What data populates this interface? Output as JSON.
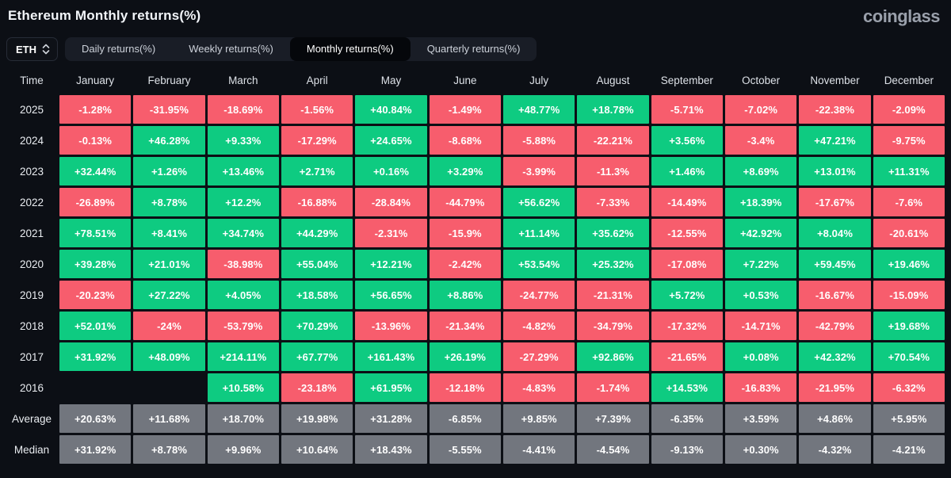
{
  "header": {
    "title": "Ethereum Monthly returns(%)",
    "logo": "coinglass"
  },
  "controls": {
    "symbol": "ETH",
    "tabs": [
      {
        "label": "Daily returns(%)",
        "active": false
      },
      {
        "label": "Weekly returns(%)",
        "active": false
      },
      {
        "label": "Monthly returns(%)",
        "active": true
      },
      {
        "label": "Quarterly returns(%)",
        "active": false
      }
    ]
  },
  "chart_data": {
    "type": "heatmap",
    "title": "Ethereum Monthly returns(%)",
    "columns": [
      "Time",
      "January",
      "February",
      "March",
      "April",
      "May",
      "June",
      "July",
      "August",
      "September",
      "October",
      "November",
      "December"
    ],
    "rows": [
      {
        "label": "2025",
        "summary": false,
        "values": [
          "-1.28%",
          "-31.95%",
          "-18.69%",
          "-1.56%",
          "+40.84%",
          "-1.49%",
          "+48.77%",
          "+18.78%",
          "-5.71%",
          "-7.02%",
          "-22.38%",
          "-2.09%"
        ]
      },
      {
        "label": "2024",
        "summary": false,
        "values": [
          "-0.13%",
          "+46.28%",
          "+9.33%",
          "-17.29%",
          "+24.65%",
          "-8.68%",
          "-5.88%",
          "-22.21%",
          "+3.56%",
          "-3.4%",
          "+47.21%",
          "-9.75%"
        ]
      },
      {
        "label": "2023",
        "summary": false,
        "values": [
          "+32.44%",
          "+1.26%",
          "+13.46%",
          "+2.71%",
          "+0.16%",
          "+3.29%",
          "-3.99%",
          "-11.3%",
          "+1.46%",
          "+8.69%",
          "+13.01%",
          "+11.31%"
        ]
      },
      {
        "label": "2022",
        "summary": false,
        "values": [
          "-26.89%",
          "+8.78%",
          "+12.2%",
          "-16.88%",
          "-28.84%",
          "-44.79%",
          "+56.62%",
          "-7.33%",
          "-14.49%",
          "+18.39%",
          "-17.67%",
          "-7.6%"
        ]
      },
      {
        "label": "2021",
        "summary": false,
        "values": [
          "+78.51%",
          "+8.41%",
          "+34.74%",
          "+44.29%",
          "-2.31%",
          "-15.9%",
          "+11.14%",
          "+35.62%",
          "-12.55%",
          "+42.92%",
          "+8.04%",
          "-20.61%"
        ]
      },
      {
        "label": "2020",
        "summary": false,
        "values": [
          "+39.28%",
          "+21.01%",
          "-38.98%",
          "+55.04%",
          "+12.21%",
          "-2.42%",
          "+53.54%",
          "+25.32%",
          "-17.08%",
          "+7.22%",
          "+59.45%",
          "+19.46%"
        ]
      },
      {
        "label": "2019",
        "summary": false,
        "values": [
          "-20.23%",
          "+27.22%",
          "+4.05%",
          "+18.58%",
          "+56.65%",
          "+8.86%",
          "-24.77%",
          "-21.31%",
          "+5.72%",
          "+0.53%",
          "-16.67%",
          "-15.09%"
        ]
      },
      {
        "label": "2018",
        "summary": false,
        "values": [
          "+52.01%",
          "-24%",
          "-53.79%",
          "+70.29%",
          "-13.96%",
          "-21.34%",
          "-4.82%",
          "-34.79%",
          "-17.32%",
          "-14.71%",
          "-42.79%",
          "+19.68%"
        ]
      },
      {
        "label": "2017",
        "summary": false,
        "values": [
          "+31.92%",
          "+48.09%",
          "+214.11%",
          "+67.77%",
          "+161.43%",
          "+26.19%",
          "-27.29%",
          "+92.86%",
          "-21.65%",
          "+0.08%",
          "+42.32%",
          "+70.54%"
        ]
      },
      {
        "label": "2016",
        "summary": false,
        "values": [
          "",
          "",
          "+10.58%",
          "-23.18%",
          "+61.95%",
          "-12.18%",
          "-4.83%",
          "-1.74%",
          "+14.53%",
          "-16.83%",
          "-21.95%",
          "-6.32%"
        ]
      },
      {
        "label": "Average",
        "summary": true,
        "values": [
          "+20.63%",
          "+11.68%",
          "+18.70%",
          "+19.98%",
          "+31.28%",
          "-6.85%",
          "+9.85%",
          "+7.39%",
          "-6.35%",
          "+3.59%",
          "+4.86%",
          "+5.95%"
        ]
      },
      {
        "label": "Median",
        "summary": true,
        "values": [
          "+31.92%",
          "+8.78%",
          "+9.96%",
          "+10.64%",
          "+18.43%",
          "-5.55%",
          "-4.41%",
          "-4.54%",
          "-9.13%",
          "+0.30%",
          "-4.32%",
          "-4.21%"
        ]
      }
    ]
  },
  "colors": {
    "positive": "#0ecb81",
    "negative": "#f75d6d",
    "neutral": "#72767e",
    "background": "#0c0f15"
  }
}
